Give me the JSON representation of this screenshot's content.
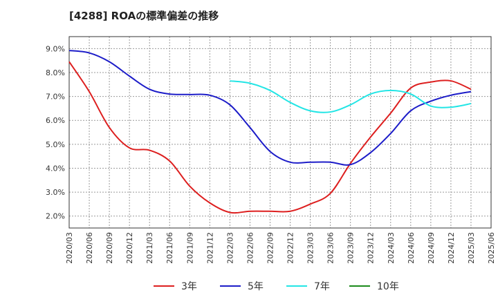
{
  "chart_data": {
    "type": "line",
    "title": "[4288]  ROAの標準偏差の推移",
    "xlabel": "",
    "ylabel": "",
    "x": [
      "2020/03",
      "2020/06",
      "2020/09",
      "2020/12",
      "2021/03",
      "2021/06",
      "2021/09",
      "2021/12",
      "2022/03",
      "2022/06",
      "2022/09",
      "2022/12",
      "2023/03",
      "2023/06",
      "2023/09",
      "2023/12",
      "2024/03",
      "2024/06",
      "2024/09",
      "2024/12",
      "2025/03",
      "2025/06"
    ],
    "x_tick_labels": [
      "2020/03",
      "2020/06",
      "2020/09",
      "2020/12",
      "2021/03",
      "2021/06",
      "2021/09",
      "2021/12",
      "2022/03",
      "2022/06",
      "2022/09",
      "2022/12",
      "2023/03",
      "2023/06",
      "2023/09",
      "2023/12",
      "2024/03",
      "2024/06",
      "2024/09",
      "2024/12",
      "2025/03",
      "2025/06"
    ],
    "y_ticks": [
      2.0,
      3.0,
      4.0,
      5.0,
      6.0,
      7.0,
      8.0,
      9.0
    ],
    "y_tick_labels": [
      "2.0%",
      "3.0%",
      "4.0%",
      "5.0%",
      "6.0%",
      "7.0%",
      "8.0%",
      "9.0%"
    ],
    "ylim": [
      1.5,
      9.5
    ],
    "grid": true,
    "legend_position": "bottom",
    "series": [
      {
        "name": "3年",
        "color": "#dd1f1f",
        "values": [
          8.45,
          7.2,
          5.7,
          4.85,
          4.75,
          4.3,
          3.25,
          2.55,
          2.15,
          2.2,
          2.2,
          2.2,
          2.5,
          2.95,
          4.2,
          5.3,
          6.3,
          7.35,
          7.6,
          7.65,
          7.3,
          null
        ]
      },
      {
        "name": "5年",
        "color": "#1c1cc8",
        "values": [
          8.92,
          8.82,
          8.45,
          7.85,
          7.3,
          7.1,
          7.08,
          7.05,
          6.65,
          5.7,
          4.7,
          4.25,
          4.25,
          4.25,
          4.15,
          4.65,
          5.45,
          6.4,
          6.8,
          7.05,
          7.2,
          null
        ]
      },
      {
        "name": "7年",
        "color": "#22e5e5",
        "values": [
          null,
          null,
          null,
          null,
          null,
          null,
          null,
          null,
          7.65,
          7.55,
          7.25,
          6.75,
          6.4,
          6.35,
          6.65,
          7.1,
          7.25,
          7.1,
          6.6,
          6.55,
          6.7,
          null
        ]
      },
      {
        "name": "10年",
        "color": "#1a8a1a",
        "values": [
          null,
          null,
          null,
          null,
          null,
          null,
          null,
          null,
          null,
          null,
          null,
          null,
          null,
          null,
          null,
          null,
          null,
          null,
          null,
          null,
          null,
          null
        ]
      }
    ]
  }
}
